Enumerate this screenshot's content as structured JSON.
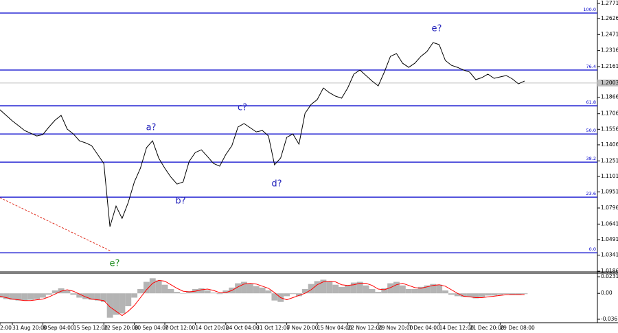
{
  "chart_data": [
    {
      "type": "line",
      "categories": [
        "2:00",
        null,
        null,
        "31 Aug 20:00",
        null,
        null,
        null,
        null,
        "8 Sep 04:00",
        null,
        null,
        null,
        null,
        "15 Sep 12:00",
        null,
        null,
        null,
        null,
        "22 Sep 20:00",
        null,
        null,
        null,
        null,
        "30 Sep 04:00",
        null,
        null,
        null,
        null,
        "7 Oct 12:00",
        null,
        null,
        null,
        null,
        "14 Oct 20:00",
        null,
        null,
        null,
        null,
        "24 Oct 04:00",
        null,
        null,
        null,
        null,
        "31 Oct 12:00",
        null,
        null,
        null,
        null,
        "7 Nov 20:00",
        null,
        null,
        null,
        null,
        "15 Nov 04:00",
        null,
        null,
        null,
        null,
        "22 Nov 12:00",
        null,
        null,
        null,
        null,
        "29 Nov 20:00",
        null,
        null,
        null,
        null,
        "7 Dec 04:00",
        null,
        null,
        null,
        null,
        "14 Dec 12:00",
        null,
        null,
        null,
        null,
        "21 Dec 20:00",
        null,
        null,
        null,
        null,
        "29 Dec 08:00",
        null,
        null,
        null,
        null
      ],
      "values": [
        1.1757,
        1.1743,
        1.169,
        1.1637,
        1.1591,
        1.1544,
        1.1518,
        1.1491,
        1.1505,
        1.1578,
        1.1644,
        1.169,
        1.1558,
        1.1511,
        1.1445,
        1.1425,
        1.1398,
        1.1312,
        1.1226,
        1.0616,
        1.0815,
        1.0696,
        1.0848,
        1.1047,
        1.118,
        1.1379,
        1.1445,
        1.1279,
        1.118,
        1.1094,
        1.1027,
        1.1047,
        1.1246,
        1.1332,
        1.1358,
        1.1292,
        1.1226,
        1.12,
        1.1312,
        1.1398,
        1.1578,
        1.1611,
        1.1571,
        1.1531,
        1.1544,
        1.1491,
        1.1213,
        1.1279,
        1.1478,
        1.1511,
        1.1412,
        1.171,
        1.1796,
        1.1843,
        1.1955,
        1.1909,
        1.1876,
        1.1856,
        1.1955,
        1.2088,
        1.2128,
        1.2075,
        1.2022,
        1.1975,
        1.2108,
        1.226,
        1.2287,
        1.2194,
        1.2154,
        1.2194,
        1.226,
        1.2307,
        1.2393,
        1.2373,
        1.2221,
        1.2174,
        1.2154,
        1.2128,
        1.2108,
        1.2035,
        1.2055,
        1.2088,
        1.2048,
        1.2062,
        1.2075,
        1.2042,
        1.1995,
        1.2022
      ],
      "color": "#000000",
      "ylim": [
        1.0186,
        1.2771
      ],
      "yticks": [
        1.2771,
        1.2626,
        1.2471,
        1.2316,
        1.2161,
        1.1866,
        1.1706,
        1.1556,
        1.1406,
        1.1251,
        1.1101,
        1.0951,
        1.0796,
        1.0641,
        1.0491,
        1.0341,
        1.0186
      ],
      "current_price": 1.2003,
      "levels_color": "#0000cc",
      "levels": [
        {
          "label": "100.0",
          "value": 1.2678
        },
        {
          "label": "76.4",
          "value": 1.2128
        },
        {
          "label": "61.8",
          "value": 1.1783
        },
        {
          "label": "50.0",
          "value": 1.1511
        },
        {
          "label": "38.2",
          "value": 1.1239
        },
        {
          "label": "23.6",
          "value": 1.0901
        },
        {
          "label": "0.0",
          "value": 1.0364
        }
      ],
      "annotations": [
        {
          "text": "e?",
          "color": "#1a8a1a"
        },
        {
          "text": "a?",
          "color": "#2222bb"
        },
        {
          "text": "b?",
          "color": "#2222bb"
        },
        {
          "text": "c?",
          "color": "#2222bb"
        },
        {
          "text": "d?",
          "color": "#2222bb"
        },
        {
          "text": "e?",
          "color": "#2222bb"
        }
      ]
    },
    {
      "type": "macd",
      "values": [
        -0.004,
        -0.006,
        -0.008,
        -0.009,
        -0.01,
        -0.01,
        -0.009,
        -0.008,
        -0.006,
        -0.002,
        0.004,
        0.007,
        0.004,
        -0.002,
        -0.006,
        -0.008,
        -0.009,
        -0.01,
        -0.012,
        -0.034,
        -0.03,
        -0.028,
        -0.018,
        -0.006,
        0.006,
        0.016,
        0.021,
        0.018,
        0.012,
        0.006,
        0.002,
        0.0,
        0.003,
        0.006,
        0.007,
        0.004,
        0.001,
        -0.001,
        0.004,
        0.008,
        0.014,
        0.016,
        0.013,
        0.01,
        0.008,
        0.004,
        -0.01,
        -0.012,
        -0.004,
        -0.001,
        -0.004,
        0.006,
        0.013,
        0.017,
        0.019,
        0.016,
        0.012,
        0.009,
        0.011,
        0.015,
        0.016,
        0.011,
        0.006,
        0.002,
        0.007,
        0.014,
        0.016,
        0.011,
        0.006,
        0.006,
        0.009,
        0.011,
        0.013,
        0.012,
        0.004,
        -0.002,
        -0.004,
        -0.005,
        -0.005,
        -0.007,
        -0.005,
        -0.003,
        -0.003,
        -0.002,
        -0.001,
        -0.002,
        -0.002,
        -0.001
      ],
      "signal": [
        -0.003,
        -0.004,
        -0.006,
        -0.008,
        -0.009,
        -0.01,
        -0.01,
        -0.009,
        -0.008,
        -0.005,
        -0.001,
        0.003,
        0.005,
        0.003,
        -0.001,
        -0.005,
        -0.008,
        -0.009,
        -0.01,
        -0.019,
        -0.025,
        -0.031,
        -0.025,
        -0.017,
        -0.006,
        0.005,
        0.014,
        0.018,
        0.017,
        0.012,
        0.007,
        0.003,
        0.002,
        0.003,
        0.005,
        0.006,
        0.004,
        0.001,
        0.001,
        0.004,
        0.009,
        0.013,
        0.014,
        0.013,
        0.01,
        0.007,
        0.001,
        -0.006,
        -0.009,
        -0.006,
        -0.003,
        0.0,
        0.005,
        0.012,
        0.016,
        0.017,
        0.016,
        0.012,
        0.011,
        0.012,
        0.014,
        0.014,
        0.011,
        0.006,
        0.005,
        0.008,
        0.012,
        0.014,
        0.011,
        0.008,
        0.007,
        0.009,
        0.011,
        0.012,
        0.01,
        0.005,
        0.0,
        -0.004,
        -0.005,
        -0.006,
        -0.006,
        -0.005,
        -0.004,
        -0.003,
        -0.002,
        -0.002,
        -0.002,
        -0.002
      ],
      "color": "#b4b4b4",
      "signal_color": "#ff0000",
      "ylim": [
        -0.041,
        0.028
      ],
      "yticks": [
        0.02314,
        {
          "value": 0,
          "label": "0.00"
        },
        -0.03619
      ]
    }
  ]
}
